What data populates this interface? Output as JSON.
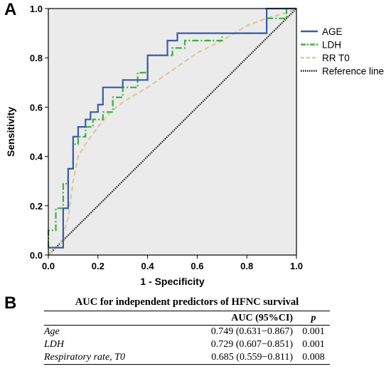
{
  "panels": {
    "a_label": "A",
    "b_label": "B"
  },
  "chart_data": {
    "type": "line",
    "xlabel": "1 - Specificity",
    "ylabel": "Sensitivity",
    "xlim": [
      0,
      1
    ],
    "ylim": [
      0,
      1
    ],
    "xticks": [
      "0.0",
      "0.2",
      "0.4",
      "0.6",
      "0.8",
      "1.0"
    ],
    "yticks": [
      "0.0",
      "0.2",
      "0.4",
      "0.6",
      "0.8",
      "1.0"
    ],
    "grid": false,
    "legend_placement": "top-right",
    "plot_background": "#ebebeb",
    "series": [
      {
        "name": "AGE",
        "color": "#3b5aa8",
        "style": "solid",
        "x": [
          0,
          0.06,
          0.06,
          0.08,
          0.08,
          0.1,
          0.1,
          0.12,
          0.12,
          0.15,
          0.15,
          0.17,
          0.17,
          0.2,
          0.2,
          0.22,
          0.22,
          0.3,
          0.3,
          0.4,
          0.4,
          0.48,
          0.48,
          0.52,
          0.52,
          0.88,
          0.88,
          1.0
        ],
        "y": [
          0.03,
          0.03,
          0.19,
          0.19,
          0.35,
          0.35,
          0.48,
          0.48,
          0.52,
          0.52,
          0.55,
          0.55,
          0.58,
          0.58,
          0.61,
          0.61,
          0.68,
          0.68,
          0.71,
          0.71,
          0.81,
          0.81,
          0.87,
          0.87,
          0.9,
          0.9,
          1.0,
          1.0
        ]
      },
      {
        "name": "LDH",
        "color": "#3cb043",
        "style": "dash-dot",
        "x": [
          0,
          0,
          0.03,
          0.03,
          0.06,
          0.06,
          0.08,
          0.08,
          0.1,
          0.1,
          0.12,
          0.12,
          0.15,
          0.15,
          0.18,
          0.18,
          0.22,
          0.22,
          0.26,
          0.26,
          0.3,
          0.3,
          0.36,
          0.36,
          0.4,
          0.4,
          0.5,
          0.5,
          0.55,
          0.55,
          0.7,
          0.7,
          0.88,
          0.88,
          0.96,
          0.96,
          1.0
        ],
        "y": [
          0.03,
          0.1,
          0.1,
          0.19,
          0.19,
          0.29,
          0.29,
          0.35,
          0.35,
          0.45,
          0.45,
          0.48,
          0.48,
          0.52,
          0.52,
          0.55,
          0.55,
          0.58,
          0.58,
          0.64,
          0.64,
          0.68,
          0.68,
          0.74,
          0.74,
          0.81,
          0.81,
          0.84,
          0.84,
          0.87,
          0.87,
          0.9,
          0.9,
          0.96,
          0.96,
          1.0,
          1.0
        ]
      },
      {
        "name": "RR T0",
        "color": "#d9c99a",
        "style": "dashed",
        "x": [
          0,
          0.02,
          0.05,
          0.08,
          0.1,
          0.12,
          0.15,
          0.2,
          0.25,
          0.3,
          0.35,
          0.4,
          0.5,
          0.6,
          0.7,
          0.75,
          0.8,
          0.88,
          0.95,
          1.0
        ],
        "y": [
          0,
          0.02,
          0.05,
          0.15,
          0.3,
          0.4,
          0.45,
          0.52,
          0.58,
          0.62,
          0.65,
          0.68,
          0.75,
          0.82,
          0.87,
          0.9,
          0.93,
          0.96,
          0.98,
          1.0
        ]
      },
      {
        "name": "Reference line",
        "color": "#111111",
        "style": "dotted",
        "x": [
          0,
          1
        ],
        "y": [
          0,
          1
        ]
      }
    ]
  },
  "table": {
    "title": "AUC for independent predictors of HFNC survival",
    "headers": {
      "name": "",
      "auc": "AUC (95%CI)",
      "p": "p"
    },
    "rows": [
      {
        "name": "Age",
        "auc": "0.749 (0.631−0.867)",
        "p": "0.001"
      },
      {
        "name": "LDH",
        "auc": "0.729 (0.607−0.851)",
        "p": "0.001"
      },
      {
        "name": "Respiratory rate, T0",
        "auc": "0.685 (0.559−0.811)",
        "p": "0.008"
      }
    ]
  }
}
